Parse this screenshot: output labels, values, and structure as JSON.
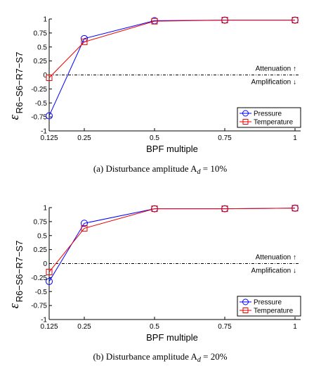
{
  "chart_data": [
    {
      "type": "line",
      "caption": "(a)  Disturbance amplitude A",
      "caption_sub": "d",
      "caption_tail": " = 10%",
      "ylabel": "ε",
      "ylabel_sub": "R6−S6−R7−S7",
      "xlabel": "BPF multiple",
      "x_ticks": [
        "0.125",
        "0.25",
        "0.5",
        "0.75",
        "1"
      ],
      "y_ticks": [
        "1",
        "0.75",
        "0.5",
        "0.25",
        "0",
        "-0.25",
        "-0.5",
        "-0.75",
        "-1"
      ],
      "xlim": [
        0.125,
        1
      ],
      "ylim": [
        -1,
        1
      ],
      "reference_line": 0,
      "annotations": [
        "Attenuation ↑",
        "Amplification ↓"
      ],
      "legend_position": "bottom-right",
      "series": [
        {
          "name": "Pressure",
          "color": "#0000ff",
          "marker": "circle",
          "x": [
            0.125,
            0.25,
            0.5,
            0.75,
            1
          ],
          "y": [
            -0.73,
            0.65,
            0.97,
            0.98,
            0.98
          ]
        },
        {
          "name": "Temperature",
          "color": "#ee0000",
          "marker": "square",
          "x": [
            0.125,
            0.25,
            0.5,
            0.75,
            1
          ],
          "y": [
            -0.05,
            0.59,
            0.96,
            0.98,
            0.98
          ]
        }
      ]
    },
    {
      "type": "line",
      "caption": "(b)  Disturbance amplitude A",
      "caption_sub": "d",
      "caption_tail": " = 20%",
      "ylabel": "ε",
      "ylabel_sub": "R6−S6−R7−S7",
      "xlabel": "BPF multiple",
      "x_ticks": [
        "0.125",
        "0.25",
        "0.5",
        "0.75",
        "1"
      ],
      "y_ticks": [
        "1",
        "0.75",
        "0.5",
        "0.25",
        "0",
        "-0.25",
        "-0.5",
        "-0.75",
        "-1"
      ],
      "xlim": [
        0.125,
        1
      ],
      "ylim": [
        -1,
        1
      ],
      "reference_line": 0,
      "annotations": [
        "Attenuation ↑",
        "Amplification ↓"
      ],
      "legend_position": "bottom-right",
      "series": [
        {
          "name": "Pressure",
          "color": "#0000ff",
          "marker": "circle",
          "x": [
            0.125,
            0.25,
            0.5,
            0.75,
            1
          ],
          "y": [
            -0.32,
            0.72,
            0.98,
            0.98,
            0.99
          ]
        },
        {
          "name": "Temperature",
          "color": "#ee0000",
          "marker": "square",
          "x": [
            0.125,
            0.25,
            0.5,
            0.75,
            1
          ],
          "y": [
            -0.15,
            0.63,
            0.98,
            0.98,
            0.99
          ]
        }
      ]
    }
  ]
}
